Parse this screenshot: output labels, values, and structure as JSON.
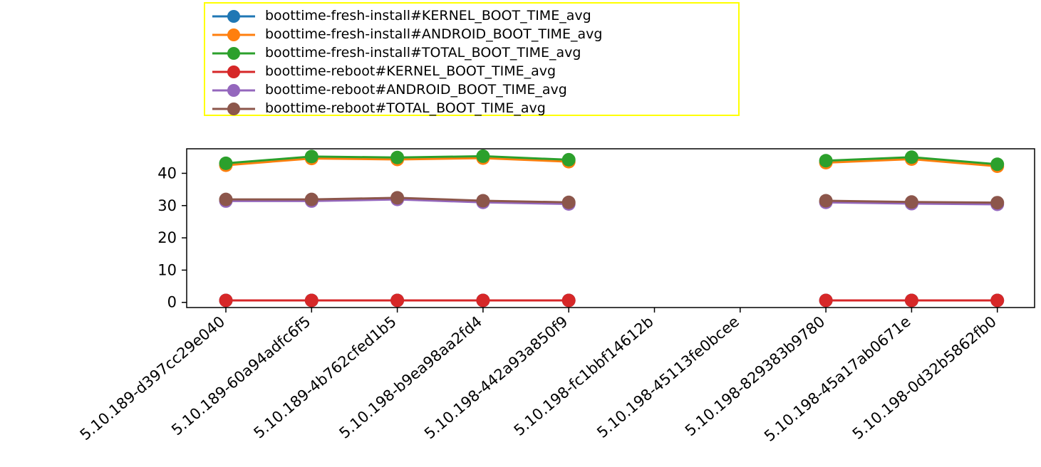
{
  "chart_data": {
    "type": "line",
    "categories": [
      "5.10.189-d397cc29e040",
      "5.10.189-60a94adfc6f5",
      "5.10.189-4b762cfed1b5",
      "5.10.198-b9ea98aa2fd4",
      "5.10.198-442a93a850f9",
      "5.10.198-fc1bbf14612b",
      "5.10.198-45113fe0bcee",
      "5.10.198-829383b9780",
      "5.10.198-45a17ab0671e",
      "5.10.198-0d32b5862fb0"
    ],
    "series": [
      {
        "name": "boottime-fresh-install#KERNEL_BOOT_TIME_avg",
        "color": "#1f77b4",
        "values": [
          0.6,
          0.6,
          0.6,
          0.6,
          0.6,
          null,
          null,
          0.6,
          0.6,
          0.6
        ]
      },
      {
        "name": "boottime-fresh-install#ANDROID_BOOT_TIME_avg",
        "color": "#ff7f0e",
        "values": [
          42.5,
          44.6,
          44.3,
          44.7,
          43.6,
          null,
          null,
          43.3,
          44.4,
          42.2
        ]
      },
      {
        "name": "boottime-fresh-install#TOTAL_BOOT_TIME_avg",
        "color": "#2ca02c",
        "values": [
          43.1,
          45.2,
          44.9,
          45.3,
          44.2,
          null,
          null,
          43.9,
          45.0,
          42.8
        ]
      },
      {
        "name": "boottime-reboot#KERNEL_BOOT_TIME_avg",
        "color": "#d62728",
        "values": [
          0.6,
          0.6,
          0.6,
          0.6,
          0.6,
          null,
          null,
          0.6,
          0.6,
          0.6
        ]
      },
      {
        "name": "boottime-reboot#ANDROID_BOOT_TIME_avg",
        "color": "#9467bd",
        "values": [
          31.4,
          31.4,
          31.9,
          31.0,
          30.5,
          null,
          null,
          31.0,
          30.6,
          30.4
        ]
      },
      {
        "name": "boottime-reboot#TOTAL_BOOT_TIME_avg",
        "color": "#8c564b",
        "values": [
          31.9,
          31.9,
          32.4,
          31.5,
          31.0,
          null,
          null,
          31.5,
          31.1,
          30.9
        ]
      }
    ],
    "yticks": [
      0,
      10,
      20,
      30,
      40
    ],
    "ylim": [
      -1.6,
      47.6
    ],
    "legend": {
      "placement": "upper-center-outside",
      "border_color": "#ffff00"
    },
    "grid": false
  }
}
